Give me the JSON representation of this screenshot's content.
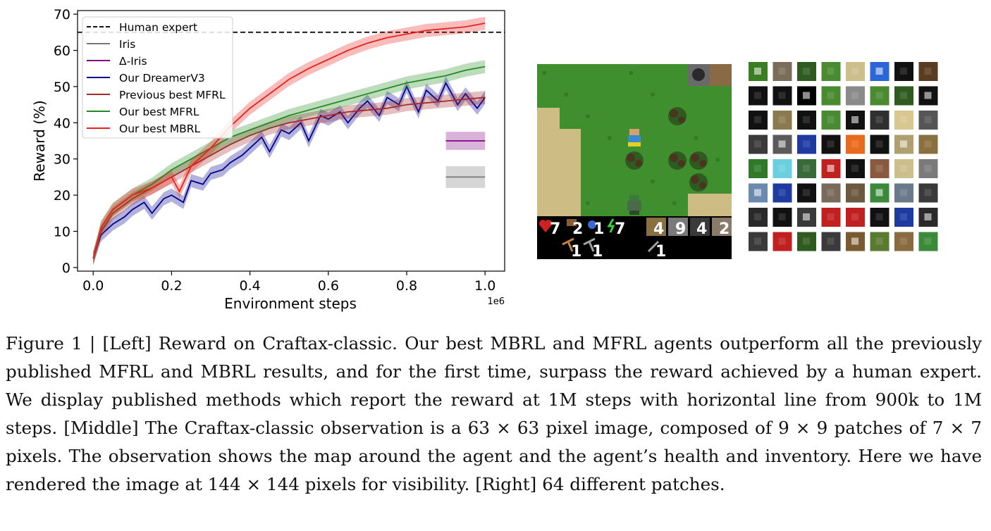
{
  "chart_data": {
    "type": "line",
    "xlabel": "Environment steps",
    "ylabel": "Reward (%)",
    "x_offset_label": "1e6",
    "xlim": [
      -0.04,
      1.05
    ],
    "ylim": [
      -1,
      71
    ],
    "x_ticks": [
      "0.0",
      "0.2",
      "0.4",
      "0.6",
      "0.8",
      "1.0"
    ],
    "y_ticks": [
      "0",
      "10",
      "20",
      "30",
      "40",
      "50",
      "60",
      "70"
    ],
    "legend_position": "upper-left",
    "human_expert": 65,
    "series": [
      {
        "name": "Human expert",
        "color": "#111111",
        "style": "dashed",
        "value": 65
      },
      {
        "name": "Iris",
        "color": "#777777",
        "x": [
          0.9,
          1.0
        ],
        "values": [
          25,
          25
        ],
        "band": [
          22,
          28
        ]
      },
      {
        "name": "Δ-Iris",
        "color": "#800080",
        "x": [
          0.9,
          1.0
        ],
        "values": [
          35,
          35
        ],
        "band": [
          32.5,
          37.5
        ]
      },
      {
        "name": "Our DreamerV3",
        "color": "#00008b",
        "x": [
          0.0,
          0.02,
          0.05,
          0.08,
          0.1,
          0.13,
          0.15,
          0.18,
          0.2,
          0.23,
          0.25,
          0.28,
          0.3,
          0.33,
          0.35,
          0.38,
          0.4,
          0.43,
          0.45,
          0.48,
          0.5,
          0.53,
          0.55,
          0.58,
          0.6,
          0.63,
          0.65,
          0.68,
          0.7,
          0.73,
          0.75,
          0.78,
          0.8,
          0.83,
          0.85,
          0.88,
          0.9,
          0.93,
          0.95,
          0.98,
          1.0
        ],
        "values": [
          2.5,
          9,
          12,
          14,
          16,
          18,
          15,
          19,
          20,
          18,
          24,
          23,
          26,
          27,
          29,
          31,
          33,
          36,
          32,
          38,
          37,
          40,
          35,
          42,
          41,
          43,
          40,
          44,
          46,
          42,
          47,
          45,
          50,
          43,
          49,
          46,
          51,
          45,
          48,
          44,
          47
        ]
      },
      {
        "name": "Previous best MFRL",
        "color": "#a52a2a",
        "x": [
          0.0,
          0.02,
          0.05,
          0.1,
          0.15,
          0.2,
          0.25,
          0.3,
          0.35,
          0.4,
          0.45,
          0.5,
          0.55,
          0.6,
          0.65,
          0.7,
          0.75,
          0.8,
          0.85,
          0.9,
          0.95,
          1.0
        ],
        "values": [
          2.5,
          10,
          15,
          19,
          22,
          25,
          28,
          31,
          34,
          36.5,
          38.5,
          40,
          41,
          42,
          43,
          43.5,
          44,
          45,
          45.5,
          46,
          46.5,
          47
        ]
      },
      {
        "name": "Our best MFRL",
        "color": "#228b22",
        "x": [
          0.0,
          0.02,
          0.05,
          0.1,
          0.15,
          0.2,
          0.25,
          0.3,
          0.35,
          0.4,
          0.45,
          0.5,
          0.55,
          0.6,
          0.65,
          0.7,
          0.75,
          0.8,
          0.85,
          0.9,
          0.95,
          1.0
        ],
        "values": [
          2.5,
          11,
          16,
          20,
          23,
          27,
          30,
          33,
          36,
          38,
          40,
          42,
          43.5,
          45,
          46.5,
          48,
          49.5,
          51,
          52,
          53,
          54.5,
          55.5
        ]
      },
      {
        "name": "Our best MBRL",
        "color": "#e8221c",
        "x": [
          0.0,
          0.02,
          0.05,
          0.1,
          0.15,
          0.2,
          0.22,
          0.25,
          0.3,
          0.35,
          0.4,
          0.45,
          0.5,
          0.55,
          0.6,
          0.65,
          0.7,
          0.75,
          0.8,
          0.85,
          0.9,
          0.95,
          1.0
        ],
        "values": [
          2.5,
          11,
          16,
          20,
          22,
          25,
          21,
          28,
          33,
          39,
          44,
          48,
          52,
          55,
          57.5,
          60,
          62,
          63.5,
          64.5,
          65.5,
          66,
          66.5,
          67.5
        ]
      }
    ]
  },
  "observation": {
    "hud_top": [
      "7",
      "2",
      "1",
      "7",
      "4",
      "9",
      "4",
      "2"
    ],
    "hud_bottom": [
      "1",
      "1",
      "1"
    ]
  },
  "patches": {
    "count": 64,
    "colors": [
      "#3a7d23",
      "#7a6e5a",
      "#2f5a20",
      "#4a8a30",
      "#cdbf8c",
      "#2b66d9",
      "#111111",
      "#5a3d20",
      "#111111",
      "#111111",
      "#000000",
      "#4a8a30",
      "#8a8a8a",
      "#4a8a30",
      "#2f5a20",
      "#111111",
      "#111111",
      "#8a7a50",
      "#111111",
      "#4a8a30",
      "#111111",
      "#2f2f2f",
      "#d8c890",
      "#555555",
      "#3a3a3a",
      "#5a5a5a",
      "#1f3aa0",
      "#111111",
      "#e86a1c",
      "#111111",
      "#b0a070",
      "#8a7040",
      "#2f7a2a",
      "#6ad0e0",
      "#3a6a3a",
      "#c02020",
      "#111111",
      "#8a5a40",
      "#cdbf8c",
      "#7a7a7a",
      "#6a8ab0",
      "#1f3aa0",
      "#111111",
      "#7a6a5a",
      "#6a5a40",
      "#3a8a3a",
      "#6a7a8a",
      "#3a3a3a",
      "#2a2a2a",
      "#111111",
      "#3a3a3a",
      "#c02020",
      "#c02020",
      "#111111",
      "#1f3aa0",
      "#2a2a2a",
      "#3a3a3a",
      "#c02020",
      "#2f5a20",
      "#3a3a3a",
      "#7a5a30",
      "#5a7a30",
      "#8a6a40",
      "#3a8a3a"
    ]
  },
  "caption": {
    "text": "Figure 1 | [Left] Reward on Craftax-classic. Our best MBRL and MFRL agents outperform all the previously published MFRL and MBRL results, and for the first time, surpass the reward achieved by a human expert. We display published methods which report the reward at 1M steps with horizontal line from 900k to 1M steps.  [Middle] The Craftax-classic observation is a 63 × 63 pixel image, composed of 9 × 9 patches of 7 × 7 pixels. The observation shows the map around the agent and the agent’s health and inventory. Here we have rendered the image at 144 × 144 pixels for visibility. [Right] 64 different patches."
  }
}
